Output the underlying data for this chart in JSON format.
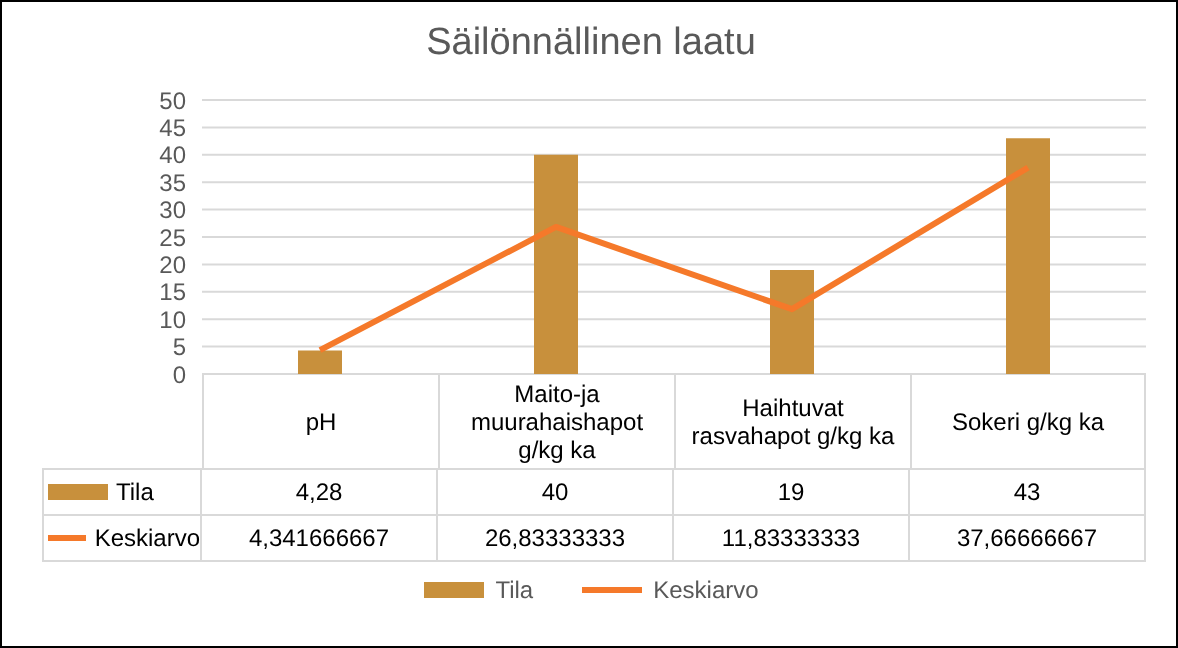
{
  "chart_data": {
    "type": "bar",
    "title": "Säilönnällinen laatu",
    "categories": [
      "pH",
      "Maito-ja muurahaishapot g/kg ka",
      "Haihtuvat rasvahapot g/kg ka",
      "Sokeri g/kg ka"
    ],
    "series": [
      {
        "name": "Tila",
        "type": "bar",
        "color": "#c8903c",
        "values": [
          4.28,
          40,
          19,
          43
        ],
        "value_labels": [
          "4,28",
          "40",
          "19",
          "43"
        ]
      },
      {
        "name": "Keskiarvo",
        "type": "line",
        "color": "#f5792a",
        "values": [
          4.341666667,
          26.83333333,
          11.83333333,
          37.66666667
        ],
        "value_labels": [
          "4,341666667",
          "26,83333333",
          "11,83333333",
          "37,66666667"
        ]
      }
    ],
    "ylim": [
      0,
      50
    ],
    "yticks": [
      0,
      5,
      10,
      15,
      20,
      25,
      30,
      35,
      40,
      45,
      50
    ],
    "grid": "y",
    "legend": "bottom",
    "marker": "none"
  }
}
